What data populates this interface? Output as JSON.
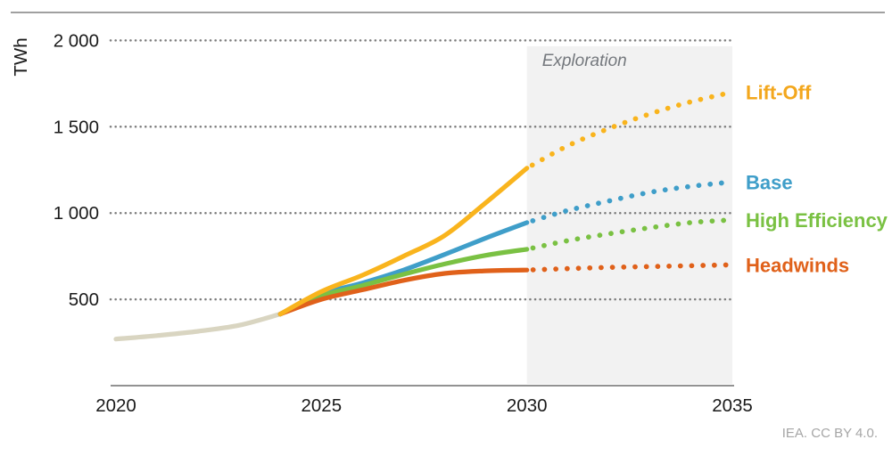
{
  "annotations": {
    "source_note": "IEA. CC BY 4.0."
  },
  "chart_data": {
    "type": "line",
    "title": "",
    "unit_label": "TWh",
    "xlim": [
      2020,
      2035
    ],
    "ylim": [
      0,
      2075
    ],
    "grid": "dotted horizontal gridlines at each y tick",
    "legend_position": "inline labels at right ends of lines",
    "xticks": [
      {
        "value": 2020,
        "label": "2020"
      },
      {
        "value": 2025,
        "label": "2025"
      },
      {
        "value": 2030,
        "label": "2030"
      },
      {
        "value": 2035,
        "label": "2035"
      }
    ],
    "yticks": [
      {
        "value": 500,
        "label": "500"
      },
      {
        "value": 1000,
        "label": "1 000"
      },
      {
        "value": 1500,
        "label": "1 500"
      },
      {
        "value": 2000,
        "label": "2 000"
      }
    ],
    "exploration_region": {
      "label": "Exploration",
      "x_start": 2030,
      "x_end": 2035,
      "fill": "#f2f2f2",
      "label_color": "#74787d"
    },
    "colors": {
      "gridline": "#7d7d7d",
      "axis_line": "#6e6e6e",
      "top_divider": "#a0a0a0",
      "tick_label": "#1a1a1a",
      "source_note": "#a6a6a6"
    },
    "series": [
      {
        "name": "Historical",
        "label": "",
        "color": "#d9d5c1",
        "solid": {
          "x": [
            2020,
            2021,
            2022,
            2023,
            2024
          ],
          "values": [
            270,
            290,
            315,
            350,
            415
          ]
        },
        "dotted": null
      },
      {
        "name": "Base",
        "label": "Base",
        "color": "#3f9ec9",
        "label_color": "#3f9ec9",
        "solid": {
          "x": [
            2024,
            2025,
            2026,
            2027,
            2028,
            2029,
            2030
          ],
          "values": [
            415,
            530,
            595,
            670,
            760,
            855,
            945
          ]
        },
        "dotted": {
          "x": [
            2030,
            2031,
            2032,
            2033,
            2034,
            2035
          ],
          "values": [
            945,
            1015,
            1070,
            1120,
            1155,
            1180
          ]
        }
      },
      {
        "name": "High Efficiency",
        "label": "High Efficiency",
        "color": "#7ac143",
        "label_color": "#7ac143",
        "solid": {
          "x": [
            2024,
            2025,
            2026,
            2027,
            2028,
            2029,
            2030
          ],
          "values": [
            415,
            520,
            580,
            645,
            705,
            755,
            790
          ]
        },
        "dotted": {
          "x": [
            2030,
            2031,
            2032,
            2033,
            2034,
            2035
          ],
          "values": [
            790,
            840,
            880,
            915,
            945,
            960
          ]
        }
      },
      {
        "name": "Headwinds",
        "label": "Headwinds",
        "color": "#e0611a",
        "label_color": "#e0611a",
        "solid": {
          "x": [
            2024,
            2025,
            2026,
            2027,
            2028,
            2029,
            2030
          ],
          "values": [
            415,
            500,
            555,
            610,
            650,
            665,
            670
          ]
        },
        "dotted": {
          "x": [
            2030,
            2031,
            2032,
            2033,
            2034,
            2035
          ],
          "values": [
            670,
            678,
            685,
            690,
            695,
            700
          ]
        }
      },
      {
        "name": "Lift-Off",
        "label": "Lift-Off",
        "color": "#f9b41d",
        "label_color": "#f3a71d",
        "solid": {
          "x": [
            2024,
            2025,
            2026,
            2027,
            2028,
            2029,
            2030
          ],
          "values": [
            415,
            545,
            640,
            750,
            870,
            1060,
            1260
          ]
        },
        "dotted": {
          "x": [
            2030,
            2031,
            2032,
            2033,
            2034,
            2035
          ],
          "values": [
            1260,
            1390,
            1490,
            1575,
            1645,
            1700
          ]
        }
      }
    ]
  }
}
